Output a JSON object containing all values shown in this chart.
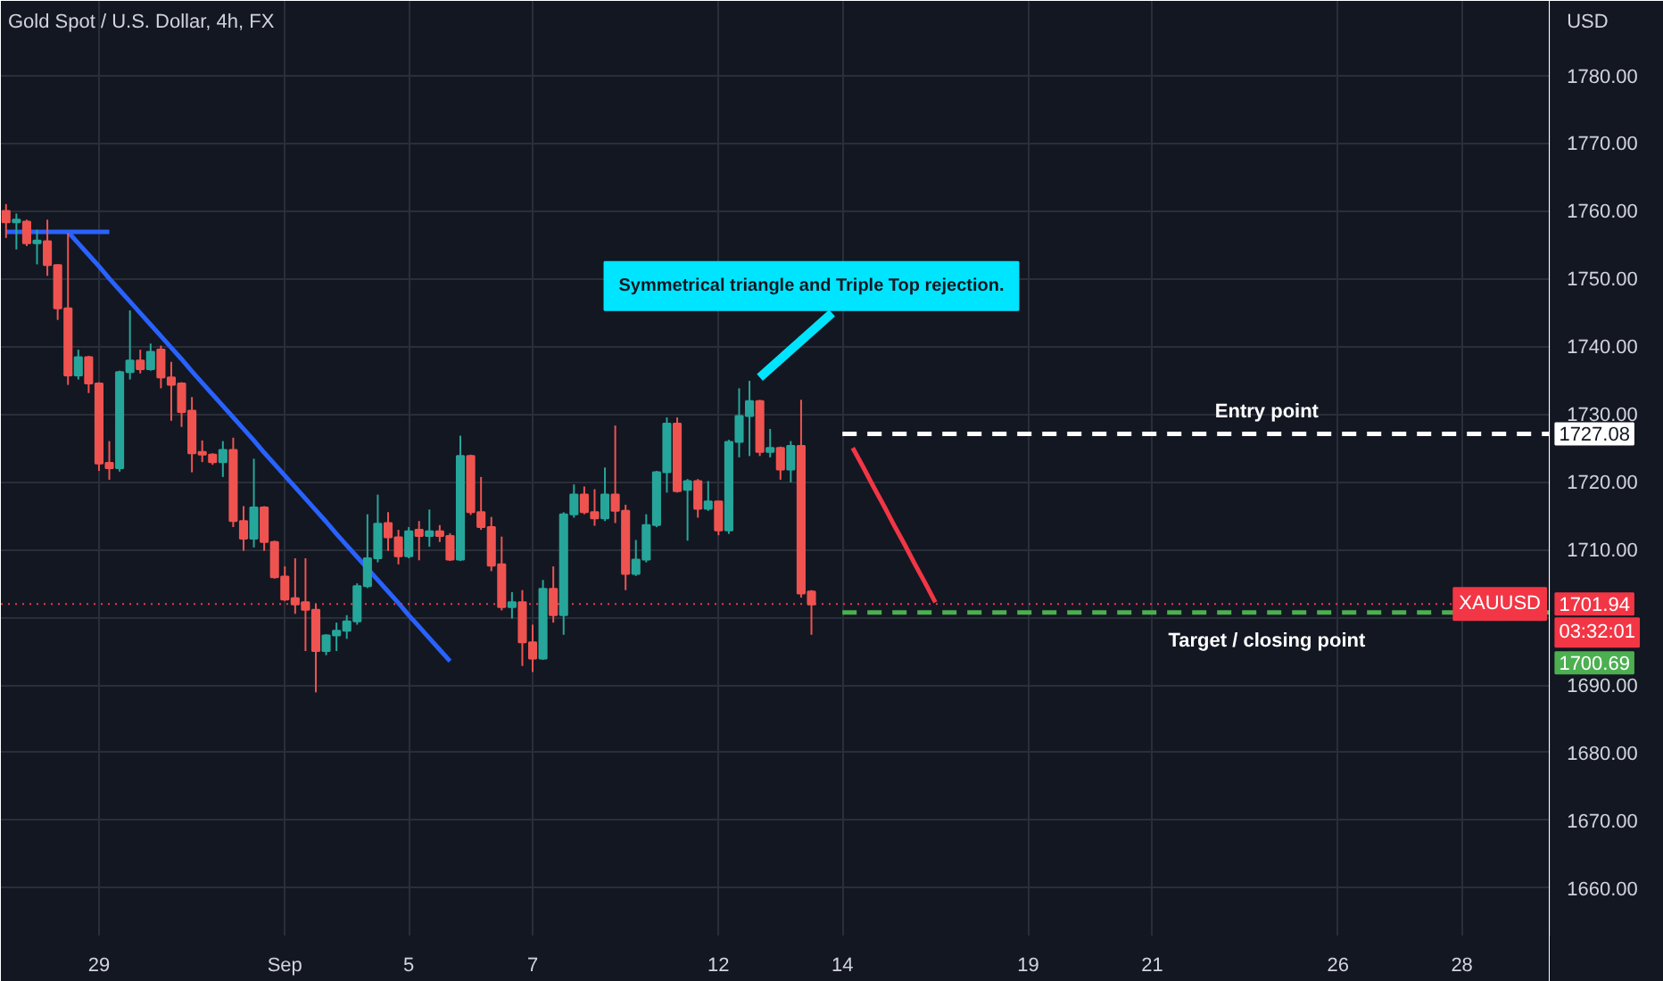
{
  "chart_data": {
    "type": "candlestick",
    "title": "Gold Spot / U.S. Dollar, 4h, FX",
    "ylabel": "USD",
    "categories": [
      null,
      null,
      null,
      null,
      null,
      null,
      null,
      null,
      null,
      "29",
      null,
      null,
      null,
      null,
      null,
      null,
      null,
      null,
      null,
      null,
      null,
      null,
      null,
      null,
      null,
      null,
      null,
      "Sep",
      null,
      null,
      null,
      null,
      null,
      null,
      null,
      null,
      null,
      null,
      null,
      "5",
      null,
      null,
      null,
      null,
      null,
      null,
      null,
      null,
      null,
      null,
      null,
      "7",
      null,
      null,
      null,
      null,
      null,
      null,
      null,
      null,
      null,
      null,
      null,
      null,
      null,
      null,
      null,
      null,
      null,
      "12",
      null,
      null,
      null,
      null,
      null,
      null,
      null,
      null,
      null,
      null,
      null,
      "14",
      null,
      null,
      null,
      null,
      null,
      null,
      null,
      null,
      null,
      null,
      null,
      null,
      null,
      null,
      null,
      null,
      null,
      "19",
      null,
      null,
      null,
      null,
      null,
      null,
      null,
      null,
      null,
      null,
      null,
      "21",
      null,
      null,
      null,
      null,
      null,
      null,
      null,
      null,
      null,
      null,
      null,
      null,
      null,
      null,
      null,
      null,
      null,
      "26",
      null,
      null,
      null,
      null,
      null,
      null,
      null,
      null,
      null,
      null,
      null,
      "28",
      null,
      null,
      null,
      null,
      null,
      null,
      null,
      null
    ],
    "ohlc": [
      [
        1760,
        1761,
        1756,
        1758.3
      ],
      [
        1758.3,
        1759.6,
        1754.3,
        1758.7
      ],
      [
        1758.4,
        1758.7,
        1754.8,
        1755.2
      ],
      [
        1755.2,
        1757.2,
        1752.1,
        1755.6
      ],
      [
        1755.5,
        1758.7,
        1750.4,
        1752
      ],
      [
        1752,
        1752.1,
        1743.9,
        1745.6
      ],
      [
        1745.6,
        1756.7,
        1734.3,
        1735.7
      ],
      [
        1735.7,
        1739.5,
        1735.1,
        1738.4
      ],
      [
        1738.4,
        1738.6,
        1733.1,
        1734.5
      ],
      [
        1734.5,
        1734.7,
        1721.6,
        1722.7
      ],
      [
        1722.8,
        1726,
        1720.3,
        1722
      ],
      [
        1722,
        1736.4,
        1721.5,
        1736.2
      ],
      [
        1736.2,
        1745.3,
        1735.1,
        1737.9
      ],
      [
        1737.9,
        1739.5,
        1736,
        1736.6
      ],
      [
        1736.6,
        1740.4,
        1736.4,
        1739.2
      ],
      [
        1739.5,
        1740.1,
        1733.8,
        1735.4
      ],
      [
        1735.4,
        1737.7,
        1729,
        1734.3
      ],
      [
        1734.5,
        1734.7,
        1728.1,
        1730.3
      ],
      [
        1730.5,
        1732.5,
        1721.4,
        1724.2
      ],
      [
        1724.4,
        1726.1,
        1722.9,
        1724
      ],
      [
        1724,
        1724.2,
        1722.5,
        1722.9
      ],
      [
        1722.9,
        1726,
        1720.7,
        1724.7
      ],
      [
        1724.7,
        1726.5,
        1713.3,
        1714.2
      ],
      [
        1714.2,
        1716.4,
        1709.8,
        1711.6
      ],
      [
        1711.6,
        1723.4,
        1710.3,
        1716.2
      ],
      [
        1716.2,
        1716.4,
        1709.8,
        1711.1
      ],
      [
        1711.1,
        1711.3,
        1705.7,
        1705.9
      ],
      [
        1706,
        1707.5,
        1702.4,
        1702.6
      ],
      [
        1702.8,
        1708.7,
        1700.5,
        1701.9
      ],
      [
        1702.2,
        1708.7,
        1695,
        1701.1
      ],
      [
        1701.1,
        1702,
        1688.9,
        1695
      ],
      [
        1695,
        1697.5,
        1694.4,
        1697.3
      ],
      [
        1697.3,
        1699.2,
        1695,
        1698
      ],
      [
        1698,
        1700.3,
        1696.8,
        1699.4
      ],
      [
        1699.4,
        1705,
        1698.9,
        1704.6
      ],
      [
        1704.6,
        1715.2,
        1704.3,
        1708.7
      ],
      [
        1708.7,
        1718.1,
        1708.1,
        1713.8
      ],
      [
        1713.9,
        1715.5,
        1709.8,
        1711.8
      ],
      [
        1711.8,
        1712.9,
        1707.8,
        1709
      ],
      [
        1709,
        1713.3,
        1708.7,
        1712.7
      ],
      [
        1712.9,
        1714.2,
        1708.4,
        1712
      ],
      [
        1712,
        1715.9,
        1710.4,
        1712.7
      ],
      [
        1712.7,
        1713.6,
        1711.1,
        1712
      ],
      [
        1712,
        1712.4,
        1708.3,
        1708.5
      ],
      [
        1708.5,
        1726.8,
        1708.3,
        1723.8
      ],
      [
        1723.8,
        1724,
        1715.1,
        1715.5
      ],
      [
        1715.5,
        1720.7,
        1712.9,
        1713.3
      ],
      [
        1713.3,
        1714.8,
        1706.8,
        1707.6
      ],
      [
        1707.8,
        1711.9,
        1701,
        1701.5
      ],
      [
        1701.5,
        1703.7,
        1699.8,
        1702.2
      ],
      [
        1702.2,
        1704,
        1692.8,
        1696.3
      ],
      [
        1696.3,
        1698.9,
        1691.9,
        1693.9
      ],
      [
        1693.9,
        1705.5,
        1693.7,
        1704.2
      ],
      [
        1704.2,
        1707.5,
        1699.2,
        1700.3
      ],
      [
        1700.3,
        1715.5,
        1697.4,
        1715.2
      ],
      [
        1715.2,
        1719.6,
        1714.7,
        1718.1
      ],
      [
        1718.1,
        1719.3,
        1715.2,
        1715.5
      ],
      [
        1715.5,
        1718.9,
        1713.5,
        1714.6
      ],
      [
        1714.6,
        1722.1,
        1714.2,
        1718.1
      ],
      [
        1718.1,
        1728.3,
        1713.9,
        1715.7
      ],
      [
        1715.7,
        1716.6,
        1704,
        1706.4
      ],
      [
        1706.4,
        1711.4,
        1706.1,
        1708.5
      ],
      [
        1708.5,
        1715.2,
        1708.1,
        1713.6
      ],
      [
        1713.6,
        1721.6,
        1713.3,
        1721.4
      ],
      [
        1721.4,
        1729.5,
        1718.4,
        1728.6
      ],
      [
        1728.6,
        1729.5,
        1718.4,
        1718.6
      ],
      [
        1718.8,
        1720.4,
        1711.3,
        1720.1
      ],
      [
        1720.1,
        1720.4,
        1714.7,
        1716
      ],
      [
        1716,
        1720.1,
        1715.7,
        1717.1
      ],
      [
        1717.1,
        1717.1,
        1712.1,
        1712.8
      ],
      [
        1712.8,
        1726.2,
        1712.3,
        1725.9
      ],
      [
        1725.9,
        1733.8,
        1723.6,
        1729.7
      ],
      [
        1729.7,
        1734.9,
        1723.8,
        1731.9
      ],
      [
        1731.9,
        1732.1,
        1723.8,
        1724.4
      ],
      [
        1724.4,
        1727.8,
        1723.6,
        1725
      ],
      [
        1725,
        1725.2,
        1720.3,
        1721.8
      ],
      [
        1721.8,
        1726,
        1719.9,
        1725.3
      ],
      [
        1725.3,
        1732.1,
        1702.9,
        1703.5
      ],
      [
        1703.8,
        1704,
        1697.4,
        1701.9
      ],
      null,
      null,
      null,
      null,
      null,
      null,
      null,
      null,
      null,
      null,
      null,
      null,
      null,
      null,
      null,
      null,
      null,
      null,
      null,
      null,
      null,
      null,
      null,
      null,
      null,
      null,
      null,
      null,
      null,
      null,
      null,
      null,
      null,
      null,
      null,
      null,
      null,
      null,
      null,
      null,
      null,
      null,
      null,
      null,
      null,
      null,
      null,
      null,
      null,
      null,
      null,
      null,
      null,
      null,
      null,
      null,
      null,
      null,
      null,
      null,
      null,
      null,
      null,
      null,
      null,
      null,
      null,
      null,
      null,
      null,
      null
    ],
    "colors": [
      "#ef5350",
      "#26a69a",
      "#ef5350",
      "#26a69a",
      "#ef5350",
      "#ef5350",
      "#ef5350",
      "#26a69a",
      "#ef5350",
      "#ef5350",
      "#ef5350",
      "#26a69a",
      "#26a69a",
      "#ef5350",
      "#26a69a",
      "#ef5350",
      "#ef5350",
      "#ef5350",
      "#ef5350",
      "#ef5350",
      "#ef5350",
      "#26a69a",
      "#ef5350",
      "#ef5350",
      "#26a69a",
      "#ef5350",
      "#ef5350",
      "#ef5350",
      "#ef5350",
      "#ef5350",
      "#ef5350",
      "#26a69a",
      "#26a69a",
      "#26a69a",
      "#26a69a",
      "#26a69a",
      "#26a69a",
      "#ef5350",
      "#ef5350",
      "#26a69a",
      "#ef5350",
      "#26a69a",
      "#ef5350",
      "#ef5350",
      "#26a69a",
      "#ef5350",
      "#ef5350",
      "#ef5350",
      "#ef5350",
      "#26a69a",
      "#ef5350",
      "#ef5350",
      "#26a69a",
      "#ef5350",
      "#26a69a",
      "#26a69a",
      "#ef5350",
      "#ef5350",
      "#26a69a",
      "#ef5350",
      "#ef5350",
      "#26a69a",
      "#26a69a",
      "#26a69a",
      "#26a69a",
      "#ef5350",
      "#26a69a",
      "#ef5350",
      "#26a69a",
      "#ef5350",
      "#26a69a",
      "#26a69a",
      "#26a69a",
      "#ef5350",
      "#26a69a",
      "#ef5350",
      "#26a69a",
      "#ef5350",
      "#ef5350",
      null,
      null,
      null,
      null,
      null,
      null,
      null,
      null,
      null,
      null,
      null,
      null,
      null,
      null,
      null,
      null,
      null,
      null,
      null,
      null,
      null,
      null,
      null,
      null,
      null,
      null,
      null,
      null,
      null,
      null,
      null,
      null,
      null,
      null,
      null,
      null,
      null,
      null,
      null,
      null,
      null,
      null,
      null,
      null,
      null,
      null,
      null,
      null,
      null,
      null,
      null,
      null,
      null,
      null,
      null,
      null,
      null,
      null,
      null,
      null,
      null,
      null,
      null,
      null,
      null,
      null,
      null,
      null,
      null,
      null,
      null
    ],
    "series": [
      {
        "type": "line",
        "color": "#2962ff",
        "values": [
          1756.9,
          1756.9,
          1756.9,
          1756.9,
          1756.9,
          1756.9,
          1756.9,
          1756.9,
          1756.9,
          1756.9,
          1756.9,
          null,
          null,
          null,
          null,
          null,
          null,
          null,
          null,
          null,
          null,
          null,
          null,
          null,
          null,
          null,
          null,
          null,
          null,
          null,
          null,
          null,
          null,
          null,
          null,
          null,
          null,
          null,
          null,
          null,
          null,
          null,
          null,
          null,
          null,
          null,
          null,
          null,
          null,
          null,
          null,
          null,
          null,
          null,
          null,
          null,
          null,
          null,
          null,
          null,
          null,
          null,
          null,
          null,
          null,
          null,
          null,
          null,
          null,
          null,
          null,
          null,
          null,
          null,
          null,
          null,
          null,
          null,
          null,
          null,
          null,
          null,
          null,
          null,
          null,
          null,
          null,
          null,
          null,
          null,
          null,
          null,
          null,
          null,
          null,
          null,
          null,
          null,
          null,
          null,
          null,
          null,
          null,
          null,
          null,
          null,
          null,
          null,
          null,
          null,
          null,
          null,
          null,
          null,
          null,
          null,
          null,
          null,
          null,
          null,
          null,
          null,
          null,
          null,
          null,
          null,
          null,
          null,
          null,
          null,
          null,
          null,
          null,
          null,
          null,
          null,
          null,
          null,
          null,
          null,
          null,
          null,
          null,
          null,
          null,
          null,
          null,
          null,
          null,
          null
        ]
      },
      {
        "type": "line",
        "color": "#2962ff",
        "values": [
          null,
          null,
          null,
          null,
          null,
          null,
          1756.9,
          1755.2,
          1753.5,
          1751.8,
          1750.0,
          1748.3,
          1746.6,
          1744.9,
          1743.2,
          1741.5,
          1739.8,
          1738.1,
          1736.3,
          1734.6,
          1732.9,
          1731.2,
          1729.5,
          1727.8,
          1726.1,
          1724.3,
          1722.6,
          1720.9,
          1719.2,
          1717.5,
          1715.8,
          1714.1,
          1712.3,
          1710.6,
          1708.9,
          1707.2,
          1705.5,
          1703.8,
          1702.1,
          1700.3,
          1698.6,
          1696.9,
          1695.2,
          1693.5,
          null,
          null,
          null,
          null,
          null,
          null,
          null,
          null,
          null,
          null,
          null,
          null,
          null,
          null,
          null,
          null,
          null,
          null,
          null,
          null,
          null,
          null,
          null,
          null,
          null,
          null,
          null,
          null,
          null,
          null,
          null,
          null,
          null,
          null,
          null,
          null,
          null,
          null,
          null,
          null,
          null,
          null,
          null,
          null,
          null,
          null,
          null,
          null,
          null,
          null,
          null,
          null,
          null,
          null,
          null,
          null,
          null,
          null,
          null,
          null,
          null,
          null,
          null,
          null,
          null,
          null,
          null,
          null,
          null,
          null,
          null,
          null,
          null,
          null,
          null,
          null,
          null,
          null,
          null,
          null,
          null,
          null,
          null,
          null,
          null,
          null,
          null,
          null,
          null,
          null,
          null,
          null,
          null,
          null,
          null,
          null,
          null,
          null,
          null,
          null,
          null,
          null,
          null,
          null,
          null,
          null
        ]
      },
      {
        "type": "line",
        "color": "#f23645",
        "values": [
          null,
          null,
          null,
          null,
          null,
          null,
          null,
          null,
          null,
          null,
          null,
          null,
          null,
          null,
          null,
          null,
          null,
          null,
          null,
          null,
          null,
          null,
          null,
          null,
          null,
          null,
          null,
          null,
          null,
          null,
          null,
          null,
          null,
          null,
          null,
          null,
          null,
          null,
          null,
          null,
          null,
          null,
          null,
          null,
          null,
          null,
          null,
          null,
          null,
          null,
          null,
          null,
          null,
          null,
          null,
          null,
          null,
          null,
          null,
          null,
          null,
          null,
          null,
          null,
          null,
          null,
          null,
          null,
          null,
          null,
          null,
          null,
          null,
          null,
          null,
          null,
          null,
          null,
          null,
          null,
          null,
          null,
          1725.0,
          1722.2,
          1719.3,
          1716.5,
          1713.6,
          1710.8,
          1707.9,
          1705.1,
          1702.2,
          null,
          null,
          null,
          null,
          null,
          null,
          null,
          null,
          null,
          null,
          null,
          null,
          null,
          null,
          null,
          null,
          null,
          null,
          null,
          null,
          null,
          null,
          null,
          null,
          null,
          null,
          null,
          null,
          null,
          null,
          null,
          null,
          null,
          null,
          null,
          null,
          null,
          null,
          null,
          null,
          null,
          null,
          null,
          null,
          null,
          null,
          null,
          null,
          null,
          null,
          null,
          null,
          null,
          null,
          null,
          null,
          null,
          null,
          null
        ]
      }
    ],
    "ylim": [
      1653,
      1791
    ],
    "yticks": [
      {
        "value": 1660,
        "label": "1660.00"
      },
      {
        "value": 1670,
        "label": "1670.00"
      },
      {
        "value": 1680,
        "label": "1680.00"
      },
      {
        "value": 1690,
        "label": "1690.00"
      },
      {
        "value": 1700,
        "label": null
      },
      {
        "value": 1710,
        "label": "1710.00"
      },
      {
        "value": 1720,
        "label": "1720.00"
      },
      {
        "value": 1730,
        "label": "1730.00"
      },
      {
        "value": 1740,
        "label": "1740.00"
      },
      {
        "value": 1750,
        "label": "1750.00"
      },
      {
        "value": 1760,
        "label": "1760.00"
      },
      {
        "value": 1770,
        "label": "1770.00"
      },
      {
        "value": 1780,
        "label": "1780.00"
      }
    ],
    "ref_lines": [
      {
        "axis": "y",
        "value": 1727.08,
        "label": "Entry point",
        "color": "#ffffff",
        "line_style": "dashed"
      },
      {
        "axis": "y",
        "value": 1701.94,
        "label": "XAUUSD",
        "color": "#f23645",
        "line_style": "dotted"
      },
      {
        "axis": "y",
        "value": 1700.69,
        "label": "Target / closing point",
        "color": "#4caf50",
        "line_style": "dashed"
      }
    ],
    "annotations": [
      "Symmetrical triangle and Triple Top rejection.",
      "1727.08",
      "1701.94",
      "03:32:01",
      "1700.69"
    ],
    "grid": true,
    "marker": "none",
    "line_style": "solid"
  }
}
